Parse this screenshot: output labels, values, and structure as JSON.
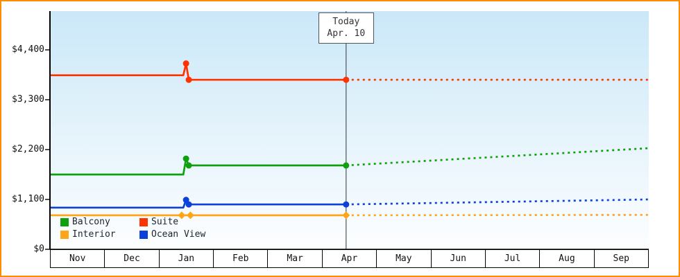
{
  "frame": {
    "border_color": "#ff8b00"
  },
  "chart_data": {
    "type": "line",
    "title": "",
    "x_unit": "month-index (0 = start of Nov, 11 = end of Sep); y values in US dollars",
    "x_categories": [
      "Nov",
      "Dec",
      "Jan",
      "Feb",
      "Mar",
      "Apr",
      "May",
      "Jun",
      "Jul",
      "Aug",
      "Sep"
    ],
    "y_ticks": [
      {
        "label": "$0",
        "value": 0
      },
      {
        "label": "$1,100",
        "value": 1100
      },
      {
        "label": "$2,200",
        "value": 2200
      },
      {
        "label": "$3,300",
        "value": 3300
      },
      {
        "label": "$4,400",
        "value": 4400
      }
    ],
    "y_range": [
      0,
      4400
    ],
    "grid": false,
    "background_gradient": [
      "#cbe8f8",
      "#fdfeff"
    ],
    "today": {
      "line1": "Today",
      "line2": "Apr. 10",
      "x": 5.44
    },
    "series": [
      {
        "name": "Interior",
        "color": "#ffa517",
        "marker": "diamond",
        "history": [
          [
            0,
            750
          ],
          [
            5.44,
            750
          ]
        ],
        "forecast": [
          [
            5.44,
            750
          ],
          [
            11,
            760
          ]
        ],
        "markers": [
          [
            2.42,
            750
          ],
          [
            2.58,
            750
          ],
          [
            5.44,
            750
          ]
        ]
      },
      {
        "name": "Ocean View",
        "color": "#0b41d8",
        "marker": "circle",
        "history": [
          [
            0,
            920
          ],
          [
            2.45,
            920
          ],
          [
            2.5,
            1090
          ],
          [
            2.55,
            990
          ],
          [
            5.44,
            990
          ]
        ],
        "forecast": [
          [
            5.44,
            990
          ],
          [
            11,
            1100
          ]
        ],
        "markers": [
          [
            2.5,
            1090
          ],
          [
            2.55,
            990
          ],
          [
            5.44,
            990
          ]
        ]
      },
      {
        "name": "Balcony",
        "color": "#0fa00f",
        "marker": "circle",
        "history": [
          [
            0,
            1650
          ],
          [
            2.45,
            1650
          ],
          [
            2.5,
            2000
          ],
          [
            2.55,
            1850
          ],
          [
            5.44,
            1850
          ]
        ],
        "forecast": [
          [
            5.44,
            1850
          ],
          [
            11,
            2230
          ]
        ],
        "markers": [
          [
            2.5,
            2000
          ],
          [
            2.55,
            1850
          ],
          [
            5.44,
            1850
          ]
        ]
      },
      {
        "name": "Suite",
        "color": "#ff3300",
        "marker": "circle",
        "history": [
          [
            0,
            3840
          ],
          [
            2.45,
            3840
          ],
          [
            2.5,
            4100
          ],
          [
            2.55,
            3740
          ],
          [
            5.44,
            3740
          ]
        ],
        "forecast": [
          [
            5.44,
            3740
          ],
          [
            11,
            3740
          ]
        ],
        "markers": [
          [
            2.5,
            4100
          ],
          [
            2.55,
            3740
          ],
          [
            5.44,
            3740
          ]
        ]
      }
    ],
    "legend": [
      {
        "label": "Balcony",
        "color": "#0fa00f"
      },
      {
        "label": "Suite",
        "color": "#ff3300"
      },
      {
        "label": "Interior",
        "color": "#ffa517"
      },
      {
        "label": "Ocean View",
        "color": "#0b41d8"
      }
    ],
    "legend_position": "bottom-left"
  }
}
